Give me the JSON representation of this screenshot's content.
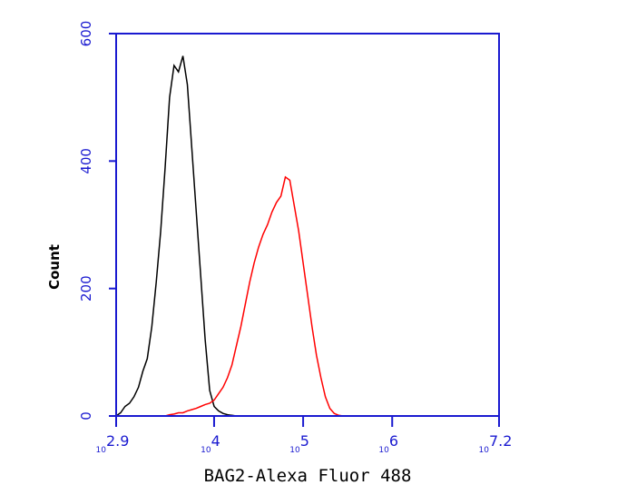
{
  "chart_data": {
    "type": "line",
    "x_label": "BAG2-Alexa Fluor 488",
    "y_label": "Count",
    "x_scale": "log",
    "xlim": [
      794.3,
      15848931.9
    ],
    "ylim": [
      0,
      600
    ],
    "xticks": [
      {
        "value": 794.3,
        "label": "10",
        "exponent": "2.9"
      },
      {
        "value": 10000,
        "label": "10",
        "exponent": "4"
      },
      {
        "value": 100000,
        "label": "10",
        "exponent": "5"
      },
      {
        "value": 1000000,
        "label": "10",
        "exponent": "6"
      },
      {
        "value": 15848931.9,
        "label": "10",
        "exponent": "7.2"
      }
    ],
    "yticks": [
      0,
      200,
      400,
      600
    ],
    "axis_color": "#1a1ad0",
    "x": [
      794,
      891,
      1000,
      1122,
      1259,
      1413,
      1585,
      1778,
      1995,
      2239,
      2512,
      2818,
      3162,
      3548,
      3981,
      4467,
      5012,
      5623,
      6310,
      7079,
      7943,
      8913,
      10000,
      11220,
      12589,
      14125,
      15849,
      17783,
      19953,
      22387,
      25119,
      28184,
      31623,
      35481,
      39811,
      44668,
      50119,
      56234,
      63096,
      70795,
      79433,
      89125,
      100000,
      112202,
      125893,
      141254,
      158489,
      177828,
      199526,
      223872,
      251189,
      281838,
      316228,
      354813,
      398107
    ],
    "series": [
      {
        "color": "#000000",
        "values": [
          0,
          5,
          15,
          20,
          30,
          45,
          70,
          90,
          140,
          210,
          290,
          390,
          500,
          550,
          540,
          565,
          520,
          420,
          320,
          220,
          120,
          40,
          15,
          8,
          4,
          2,
          1,
          0,
          0,
          0,
          0,
          0,
          0,
          0,
          0,
          0,
          0,
          0,
          0,
          0,
          0,
          0,
          0,
          0,
          0,
          0,
          0,
          0,
          0,
          0,
          0,
          0,
          0,
          0,
          0
        ]
      },
      {
        "color": "#ff0000",
        "values": [
          0,
          0,
          0,
          0,
          0,
          0,
          0,
          0,
          0,
          0,
          0,
          0,
          2,
          3,
          5,
          5,
          8,
          10,
          12,
          15,
          18,
          20,
          25,
          35,
          45,
          60,
          80,
          110,
          140,
          175,
          210,
          240,
          265,
          285,
          300,
          320,
          335,
          345,
          375,
          370,
          330,
          290,
          240,
          190,
          140,
          95,
          60,
          30,
          12,
          4,
          1,
          0,
          0,
          0,
          0
        ]
      }
    ]
  }
}
